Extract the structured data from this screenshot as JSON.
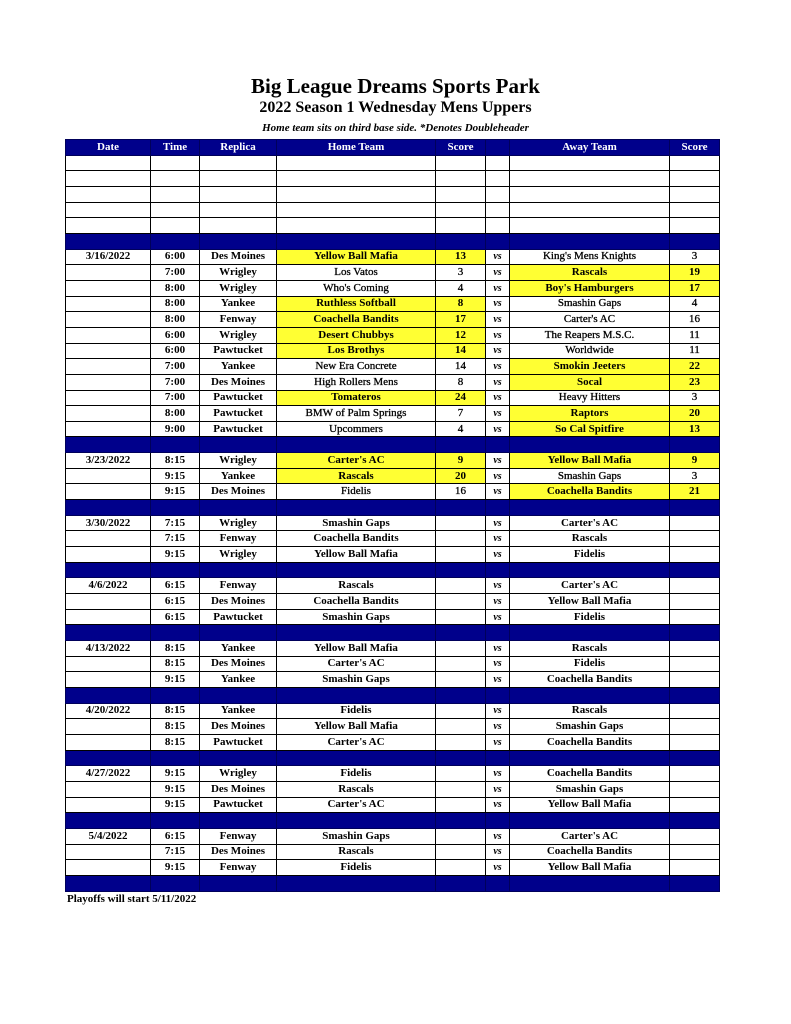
{
  "header": {
    "title": "Big League Dreams Sports Park",
    "subtitle": "2022 Season 1 Wednesday Mens Uppers",
    "note": "Home team sits on third base side.  *Denotes Doubleheader"
  },
  "columns": [
    "Date",
    "Time",
    "Replica",
    "Home Team",
    "Score",
    "",
    "Away Team",
    "Score"
  ],
  "colors": {
    "header": "#00008b",
    "winner": "#ffff33"
  },
  "vs_label": "vs",
  "groups": [
    {
      "date": "3/16/2022",
      "games": [
        [
          "6:00",
          "Des Moines",
          "Yellow Ball Mafia",
          "13",
          "King's Mens Knights",
          "3",
          "home"
        ],
        [
          "7:00",
          "Wrigley",
          "Los Vatos",
          "3",
          "Rascals",
          "19",
          "away"
        ],
        [
          "8:00",
          "Wrigley",
          "Who's Coming",
          "4",
          "Boy's Hamburgers",
          "17",
          "away"
        ],
        [
          "8:00",
          "Yankee",
          "Ruthless Softball",
          "8",
          "Smashin Gaps",
          "4",
          "home"
        ],
        [
          "8:00",
          "Fenway",
          "Coachella Bandits",
          "17",
          "Carter's AC",
          "16",
          "home"
        ],
        [
          "6:00",
          "Wrigley",
          "Desert Chubbys",
          "12",
          "The Reapers M.S.C.",
          "11",
          "home"
        ],
        [
          "6:00",
          "Pawtucket",
          "Los Brothys",
          "14",
          "Worldwide",
          "11",
          "home"
        ],
        [
          "7:00",
          "Yankee",
          "New Era Concrete",
          "14",
          "Smokin Jeeters",
          "22",
          "away"
        ],
        [
          "7:00",
          "Des Moines",
          "High Rollers Mens",
          "8",
          "Socal",
          "23",
          "away"
        ],
        [
          "7:00",
          "Pawtucket",
          "Tomateros",
          "24",
          "Heavy Hitters",
          "3",
          "home"
        ],
        [
          "8:00",
          "Pawtucket",
          "BMW of Palm Springs",
          "7",
          "Raptors",
          "20",
          "away"
        ],
        [
          "9:00",
          "Pawtucket",
          "Upcommers",
          "4",
          "So Cal Spitfire",
          "13",
          "away"
        ]
      ]
    },
    {
      "date": "3/23/2022",
      "games": [
        [
          "8:15",
          "Wrigley",
          "Carter's AC",
          "9",
          "Yellow Ball Mafia",
          "9",
          "both"
        ],
        [
          "9:15",
          "Yankee",
          "Rascals",
          "20",
          "Smashin Gaps",
          "3",
          "home"
        ],
        [
          "9:15",
          "Des Moines",
          "Fidelis",
          "16",
          "Coachella Bandits",
          "21",
          "away"
        ]
      ]
    },
    {
      "date": "3/30/2022",
      "games": [
        [
          "7:15",
          "Wrigley",
          "Smashin Gaps",
          "",
          "Carter's AC",
          "",
          ""
        ],
        [
          "7:15",
          "Fenway",
          "Coachella Bandits",
          "",
          "Rascals",
          "",
          ""
        ],
        [
          "9:15",
          "Wrigley",
          "Yellow Ball Mafia",
          "",
          "Fidelis",
          "",
          ""
        ]
      ]
    },
    {
      "date": "4/6/2022",
      "games": [
        [
          "6:15",
          "Fenway",
          "Rascals",
          "",
          "Carter's AC",
          "",
          ""
        ],
        [
          "6:15",
          "Des Moines",
          "Coachella Bandits",
          "",
          "Yellow Ball Mafia",
          "",
          ""
        ],
        [
          "6:15",
          "Pawtucket",
          "Smashin Gaps",
          "",
          "Fidelis",
          "",
          ""
        ]
      ]
    },
    {
      "date": "4/13/2022",
      "games": [
        [
          "8:15",
          "Yankee",
          "Yellow Ball Mafia",
          "",
          "Rascals",
          "",
          ""
        ],
        [
          "8:15",
          "Des Moines",
          "Carter's AC",
          "",
          "Fidelis",
          "",
          ""
        ],
        [
          "9:15",
          "Yankee",
          "Smashin Gaps",
          "",
          "Coachella Bandits",
          "",
          ""
        ]
      ]
    },
    {
      "date": "4/20/2022",
      "games": [
        [
          "8:15",
          "Yankee",
          "Fidelis",
          "",
          "Rascals",
          "",
          ""
        ],
        [
          "8:15",
          "Des Moines",
          "Yellow Ball Mafia",
          "",
          "Smashin Gaps",
          "",
          ""
        ],
        [
          "8:15",
          "Pawtucket",
          "Carter's AC",
          "",
          "Coachella Bandits",
          "",
          ""
        ]
      ]
    },
    {
      "date": "4/27/2022",
      "games": [
        [
          "9:15",
          "Wrigley",
          "Fidelis",
          "",
          "Coachella Bandits",
          "",
          ""
        ],
        [
          "9:15",
          "Des Moines",
          "Rascals",
          "",
          "Smashin Gaps",
          "",
          ""
        ],
        [
          "9:15",
          "Pawtucket",
          "Carter's AC",
          "",
          "Yellow Ball Mafia",
          "",
          ""
        ]
      ]
    },
    {
      "date": "5/4/2022",
      "games": [
        [
          "6:15",
          "Fenway",
          "Smashin Gaps",
          "",
          "Carter's AC",
          "",
          ""
        ],
        [
          "7:15",
          "Des Moines",
          "Rascals",
          "",
          "Coachella Bandits",
          "",
          ""
        ],
        [
          "9:15",
          "Fenway",
          "Fidelis",
          "",
          "Yellow Ball Mafia",
          "",
          ""
        ]
      ]
    }
  ],
  "footer": "Playoffs will start 5/11/2022"
}
